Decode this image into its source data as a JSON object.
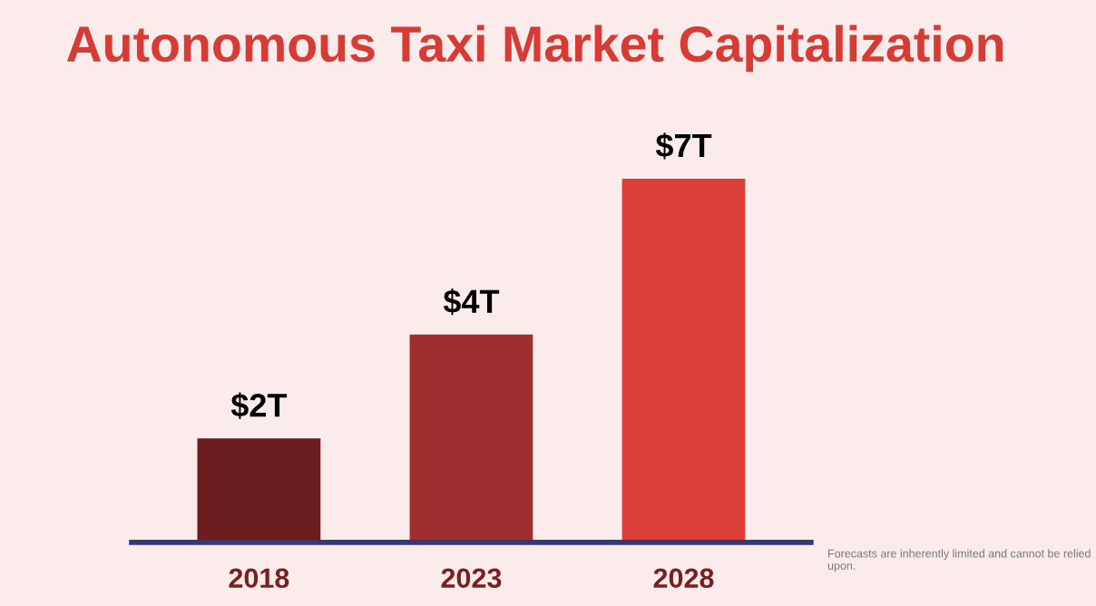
{
  "chart_data": {
    "type": "bar",
    "title": "Autonomous Taxi Market Capitalization",
    "categories": [
      "2018",
      "2023",
      "2028"
    ],
    "values": [
      2,
      4,
      7
    ],
    "value_labels": [
      "$2T",
      "$4T",
      "$7T"
    ],
    "colors": [
      "#6b1c1e",
      "#9e2f2e",
      "#dc3e38"
    ],
    "annotations": [
      "Forecasts are inherently limited and cannot be relied upon."
    ],
    "grid": false,
    "legend": false
  }
}
